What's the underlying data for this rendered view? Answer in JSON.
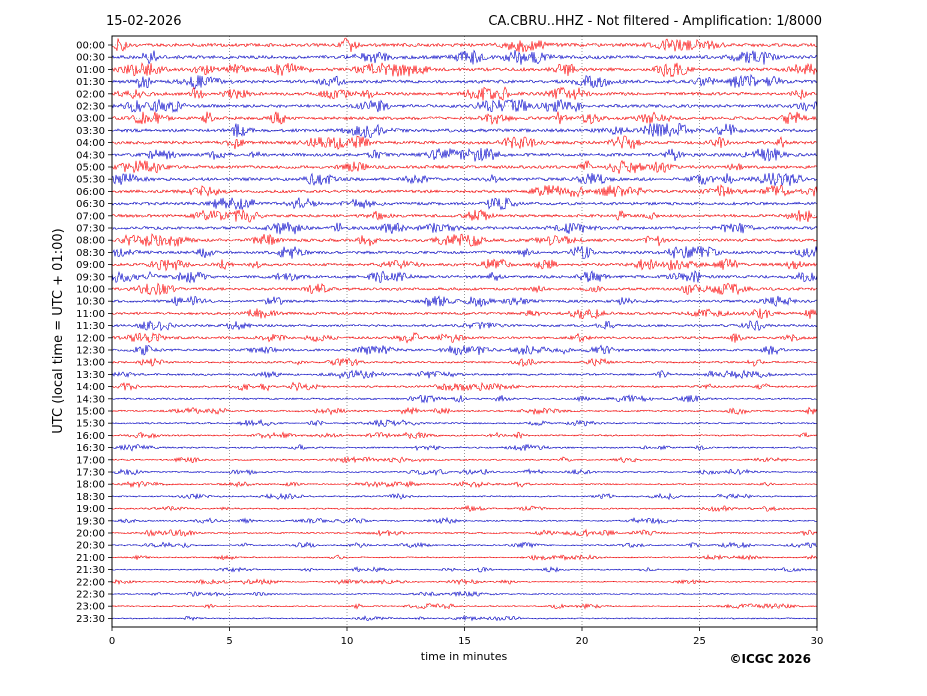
{
  "header": {
    "date": "15-02-2026",
    "title": "CA.CBRU..HHZ - Not filtered - Amplification: 1/8000"
  },
  "footer": {
    "copyright": "©ICGC 2026"
  },
  "colors": {
    "trace_even": "#ff0000",
    "trace_odd": "#0000cc",
    "grid": "#555555"
  },
  "chart_data": {
    "type": "line",
    "chart_kind": "helicorder",
    "xlabel": "time in minutes",
    "ylabel": "UTC (local time = UTC + 01:00)",
    "xlim": [
      0,
      30
    ],
    "x_ticks": [
      0,
      5,
      10,
      15,
      20,
      25,
      30
    ],
    "grid": true,
    "rows": [
      "00:00",
      "00:30",
      "01:00",
      "01:30",
      "02:00",
      "02:30",
      "03:00",
      "03:30",
      "04:00",
      "04:30",
      "05:00",
      "05:30",
      "06:00",
      "06:30",
      "07:00",
      "07:30",
      "08:00",
      "08:30",
      "09:00",
      "09:30",
      "10:00",
      "10:30",
      "11:00",
      "11:30",
      "12:00",
      "12:30",
      "13:00",
      "13:30",
      "14:00",
      "14:30",
      "15:00",
      "15:30",
      "16:00",
      "16:30",
      "17:00",
      "17:30",
      "18:00",
      "18:30",
      "19:00",
      "19:30",
      "20:00",
      "20:30",
      "21:00",
      "21:30",
      "22:00",
      "22:30",
      "23:00",
      "23:30"
    ],
    "row_amplitude": [
      0.9,
      0.9,
      0.85,
      0.85,
      0.8,
      0.8,
      0.8,
      0.85,
      0.8,
      0.8,
      0.8,
      0.8,
      0.75,
      0.75,
      0.75,
      0.75,
      0.75,
      0.75,
      0.7,
      0.7,
      0.7,
      0.65,
      0.65,
      0.6,
      0.6,
      0.6,
      0.5,
      0.5,
      0.5,
      0.45,
      0.45,
      0.4,
      0.4,
      0.4,
      0.35,
      0.35,
      0.35,
      0.35,
      0.35,
      0.35,
      0.4,
      0.35,
      0.3,
      0.3,
      0.3,
      0.3,
      0.3,
      0.3
    ]
  }
}
